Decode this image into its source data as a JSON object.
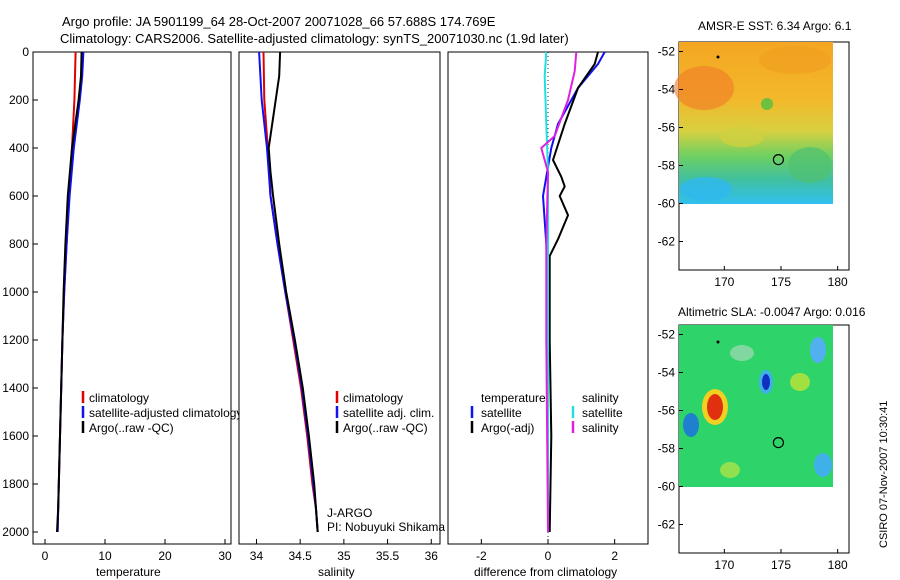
{
  "header": {
    "line1": "Argo profile: JA 5901199_64 28-Oct-2007 20071028_66 57.688S 174.769E",
    "line2": "Climatology: CARS2006. Satellite-adjusted climatology: synTS_20071030.nc (1.9d later)"
  },
  "footer": {
    "stamp": "CSIRO 07-Nov-2007 10:30:41",
    "float_info": [
      "J-ARGO",
      "PI: Nobuyuki Shikama"
    ]
  },
  "colors": {
    "climatology": "#e00000",
    "satellite": "#1010f0",
    "argo": "#000000",
    "sal_satellite": "#20e0e0",
    "sal_argo": "#e020e0"
  },
  "chart_data": [
    {
      "id": "temperature",
      "type": "line",
      "xlabel": "temperature",
      "ylabel": "",
      "xlim": [
        -2,
        31
      ],
      "ylim": [
        2050,
        0
      ],
      "xticks": [
        0,
        10,
        20,
        30
      ],
      "yticks": [
        0,
        200,
        400,
        600,
        800,
        1000,
        1200,
        1400,
        1600,
        1800,
        2000
      ],
      "legend": [
        "climatology",
        "satellite-adjusted climatology",
        "Argo(..raw -QC)"
      ],
      "legend_position": "lower-left",
      "series": [
        {
          "name": "climatology",
          "color_key": "climatology",
          "x": [
            5.1,
            5.0,
            4.9,
            4.5,
            4.0,
            3.6,
            3.2,
            2.9,
            2.7,
            2.5,
            2.3,
            2.2,
            2.1
          ],
          "y": [
            0,
            100,
            200,
            400,
            600,
            800,
            1000,
            1200,
            1400,
            1600,
            1800,
            1900,
            2000
          ]
        },
        {
          "name": "satellite-adjusted climatology",
          "color_key": "satellite",
          "x": [
            6.4,
            6.2,
            5.8,
            4.8,
            4.1,
            3.6,
            3.2,
            2.9,
            2.7,
            2.5,
            2.3,
            2.2,
            2.1
          ],
          "y": [
            0,
            100,
            200,
            400,
            600,
            800,
            1000,
            1200,
            1400,
            1600,
            1800,
            1900,
            2000
          ]
        },
        {
          "name": "Argo(..raw -QC)",
          "color_key": "argo",
          "x": [
            6.1,
            6.0,
            5.6,
            4.5,
            3.8,
            3.4,
            3.1,
            2.9,
            2.7,
            2.5,
            2.3,
            2.2,
            2.0
          ],
          "y": [
            0,
            100,
            200,
            400,
            600,
            800,
            1000,
            1200,
            1400,
            1600,
            1800,
            1900,
            2000
          ]
        }
      ]
    },
    {
      "id": "salinity",
      "type": "line",
      "xlabel": "salinity",
      "ylabel": "",
      "xlim": [
        33.8,
        36.1
      ],
      "ylim": [
        2050,
        0
      ],
      "xticks": [
        34,
        34.5,
        35,
        35.5,
        36
      ],
      "legend": [
        "climatology",
        "satellite adj. clim.",
        "Argo(..raw -QC)"
      ],
      "legend_position": "lower-right",
      "series": [
        {
          "name": "climatology",
          "color_key": "climatology",
          "x": [
            34.08,
            34.09,
            34.13,
            34.16,
            34.24,
            34.33,
            34.42,
            34.51,
            34.58,
            34.64,
            34.68,
            34.7
          ],
          "y": [
            0,
            200,
            400,
            600,
            800,
            1000,
            1200,
            1400,
            1600,
            1800,
            1900,
            2000
          ]
        },
        {
          "name": "satellite adj. clim.",
          "color_key": "satellite",
          "x": [
            34.03,
            34.06,
            34.12,
            34.16,
            34.24,
            34.33,
            34.43,
            34.52,
            34.59,
            34.65,
            34.68,
            34.7
          ],
          "y": [
            0,
            200,
            400,
            600,
            800,
            1000,
            1200,
            1400,
            1600,
            1800,
            1900,
            2000
          ]
        },
        {
          "name": "Argo(..raw -QC)",
          "color_key": "argo",
          "x": [
            34.27,
            34.26,
            34.22,
            34.14,
            34.16,
            34.19,
            34.26,
            34.34,
            34.44,
            34.53,
            34.6,
            34.66,
            34.7
          ],
          "y": [
            0,
            100,
            200,
            400,
            500,
            600,
            800,
            1000,
            1200,
            1400,
            1600,
            1800,
            2000
          ]
        }
      ]
    },
    {
      "id": "difference",
      "type": "line",
      "xlabel": "difference from climatology",
      "ylabel": "",
      "xlim": [
        -3,
        3
      ],
      "ylim": [
        2050,
        0
      ],
      "xticks": [
        -2,
        0,
        2
      ],
      "legend": [
        "temperature",
        "satellite",
        "Argo(-adj)",
        "salinity",
        "satellite",
        "Argo(-adj)"
      ],
      "legend_position": "lower-center",
      "series": [
        {
          "name": "temperature satellite",
          "color_key": "satellite",
          "x": [
            1.7,
            1.5,
            0.9,
            0.3,
            0.1,
            -0.15,
            -0.05,
            0.0,
            0.0,
            0.0,
            0.0
          ],
          "y": [
            0,
            50,
            150,
            300,
            400,
            600,
            800,
            1000,
            1400,
            1800,
            2000
          ]
        },
        {
          "name": "temperature Argo(-adj)",
          "color_key": "argo",
          "x": [
            1.5,
            1.4,
            0.9,
            0.5,
            0.15,
            0.4,
            0.5,
            0.35,
            0.6,
            0.3,
            0.05,
            0.05,
            0.1,
            0.05
          ],
          "y": [
            0,
            50,
            150,
            300,
            450,
            520,
            560,
            600,
            680,
            780,
            850,
            1200,
            1600,
            2000
          ]
        },
        {
          "name": "salinity satellite",
          "color_key": "sal_satellite",
          "x": [
            -0.05,
            -0.1,
            -0.05,
            0.0,
            0.0,
            0.0,
            0.0
          ],
          "y": [
            0,
            100,
            300,
            500,
            1000,
            1500,
            2000
          ]
        },
        {
          "name": "salinity Argo(-adj)",
          "color_key": "sal_argo",
          "x": [
            0.85,
            0.8,
            0.6,
            0.2,
            -0.2,
            0.0,
            -0.05,
            -0.05,
            0.0
          ],
          "y": [
            0,
            80,
            200,
            350,
            400,
            500,
            800,
            1200,
            2000
          ]
        }
      ]
    },
    {
      "id": "sst_map",
      "type": "heatmap",
      "title": "AMSR-E SST: 6.34 Argo: 6.1",
      "xlim": [
        166,
        181
      ],
      "ylim": [
        -63.5,
        -51.5
      ],
      "xticks": [
        170,
        175,
        180
      ],
      "yticks": [
        -52,
        -54,
        -56,
        -58,
        -60,
        -62
      ],
      "argo_position": [
        174.769,
        -57.688
      ],
      "palette": "SST: orange (warm, north) to green/cyan (cold, south)"
    },
    {
      "id": "sla_map",
      "type": "heatmap",
      "title": "Altimetric SLA: -0.0047 Argo: 0.016",
      "xlim": [
        166,
        181
      ],
      "ylim": [
        -63.5,
        -51.5
      ],
      "xticks": [
        170,
        175,
        180
      ],
      "yticks": [
        -52,
        -54,
        -56,
        -58,
        -60,
        -62
      ],
      "argo_position": [
        174.769,
        -57.688
      ],
      "palette": "SLA anomaly: green background with red/yellow highs and blue/cyan lows"
    }
  ]
}
